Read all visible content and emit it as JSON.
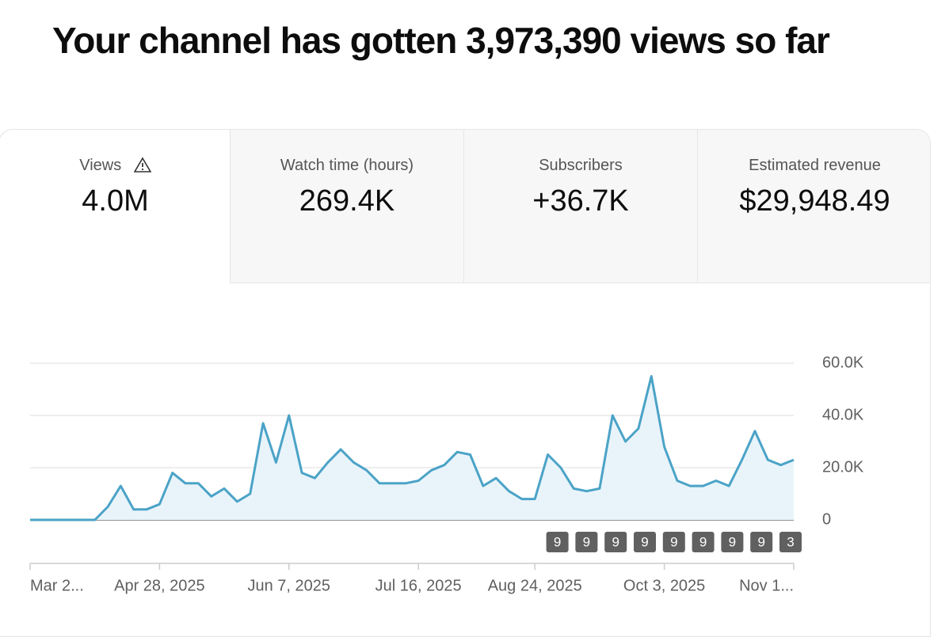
{
  "header": {
    "title": "Your channel has gotten 3,973,390 views so far"
  },
  "tabs": [
    {
      "label": "Views",
      "value": "4.0M"
    },
    {
      "label": "Watch time (hours)",
      "value": "269.4K"
    },
    {
      "label": "Subscribers",
      "value": "+36.7K"
    },
    {
      "label": "Estimated revenue",
      "value": "$29,948.49"
    }
  ],
  "chart_data": {
    "type": "area",
    "categories": [
      "Mar 2...",
      null,
      null,
      null,
      null,
      null,
      null,
      null,
      null,
      null,
      "Apr 28, 2025",
      null,
      null,
      null,
      null,
      null,
      null,
      null,
      null,
      null,
      "Jun 7, 2025",
      null,
      null,
      null,
      null,
      null,
      null,
      null,
      null,
      null,
      "Jul 16, 2025",
      null,
      null,
      null,
      null,
      null,
      null,
      null,
      null,
      "Aug 24, 2025",
      null,
      null,
      null,
      null,
      null,
      null,
      null,
      null,
      null,
      "Oct 3, 2025",
      null,
      null,
      null,
      null,
      null,
      null,
      null,
      null,
      null,
      "Nov 1..."
    ],
    "values": [
      0,
      0,
      0,
      0,
      0,
      0,
      5000,
      13000,
      4000,
      4000,
      6000,
      18000,
      14000,
      14000,
      9000,
      12000,
      7000,
      10000,
      37000,
      22000,
      40000,
      18000,
      16000,
      22000,
      27000,
      22000,
      19000,
      14000,
      14000,
      14000,
      15000,
      19000,
      21000,
      26000,
      25000,
      13000,
      16000,
      11000,
      8000,
      8000,
      25000,
      20000,
      12000,
      11000,
      12000,
      40000,
      30000,
      35000,
      55000,
      28000,
      15000,
      13000,
      13000,
      15000,
      13000,
      23000,
      34000,
      23000,
      21000,
      23000
    ],
    "color": "#4ba3c7",
    "ylim": [
      0,
      60000
    ],
    "yticks": [
      0,
      {
        "value": 20000,
        "label": "20.0K"
      },
      {
        "value": 40000,
        "label": "40.0K"
      },
      {
        "value": 60000,
        "label": "60.0K"
      }
    ],
    "grid": true,
    "annotations": [
      "9",
      "9",
      "9",
      "9",
      "9",
      "9",
      "9",
      "9",
      "3"
    ]
  }
}
